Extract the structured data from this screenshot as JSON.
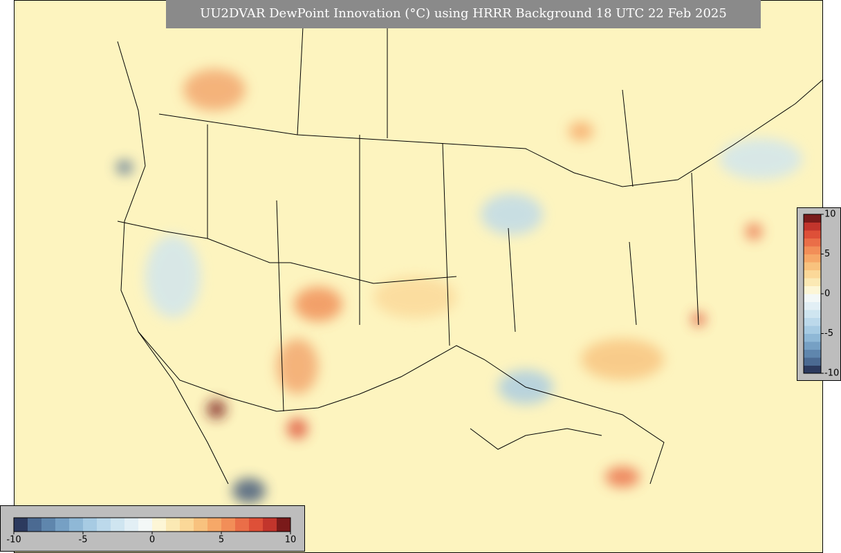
{
  "title": "UU2DVAR DewPoint Innovation (°C) using HRRR Background 18 UTC 22 Feb 2025",
  "colorbar": {
    "range": [
      -10,
      10
    ],
    "ticks": [
      -10,
      -5,
      0,
      5,
      10
    ],
    "colors": [
      "#2c3a5e",
      "#4b6a92",
      "#5f86ad",
      "#76a0c4",
      "#8fb8d6",
      "#a7cbe3",
      "#bcd9eb",
      "#cfe5f0",
      "#e2eff5",
      "#f3f8f7",
      "#fdf6d6",
      "#fbe9b4",
      "#fbd898",
      "#f8c27e",
      "#f6a868",
      "#f28e58",
      "#ea6e48",
      "#de5038",
      "#c2352c",
      "#7a1a1a"
    ]
  }
}
